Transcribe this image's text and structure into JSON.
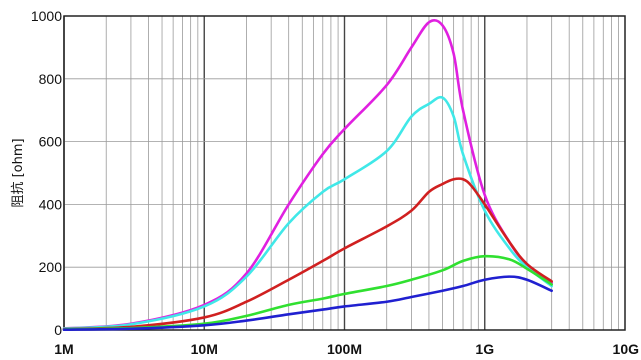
{
  "chart_data": {
    "type": "line",
    "ylabel": "阻抗 [ohm]",
    "xscale": "log",
    "xlim": [
      1000000,
      10000000000
    ],
    "ylim": [
      0,
      1000
    ],
    "grid": true,
    "x_tick_labels": [
      "1M",
      "10M",
      "100M",
      "1G",
      "10G"
    ],
    "y_tick_labels": [
      "0",
      "200",
      "400",
      "600",
      "800",
      "1000"
    ],
    "series": [
      {
        "color": "#e020e0",
        "x": [
          1000000,
          3000000,
          10000000,
          20000000,
          40000000,
          70000000,
          100000000,
          200000000,
          300000000,
          400000000,
          500000000,
          600000000,
          700000000,
          1000000000,
          1500000000,
          2000000000,
          3000000000
        ],
        "y": [
          5,
          20,
          80,
          180,
          400,
          560,
          640,
          780,
          900,
          980,
          970,
          880,
          700,
          430,
          280,
          210,
          150
        ]
      },
      {
        "color": "#40e8e8",
        "x": [
          1000000,
          3000000,
          10000000,
          20000000,
          40000000,
          70000000,
          100000000,
          200000000,
          300000000,
          400000000,
          500000000,
          600000000,
          700000000,
          1000000000,
          1500000000,
          2000000000,
          3000000000
        ],
        "y": [
          5,
          18,
          75,
          170,
          340,
          440,
          480,
          570,
          680,
          720,
          740,
          680,
          560,
          380,
          260,
          200,
          140
        ]
      },
      {
        "color": "#d02020",
        "x": [
          1000000,
          3000000,
          10000000,
          20000000,
          40000000,
          70000000,
          100000000,
          200000000,
          300000000,
          400000000,
          500000000,
          600000000,
          700000000,
          800000000,
          1000000000,
          1500000000,
          2000000000,
          3000000000
        ],
        "y": [
          3,
          10,
          40,
          90,
          160,
          220,
          260,
          330,
          380,
          440,
          465,
          480,
          480,
          460,
          400,
          280,
          210,
          155
        ]
      },
      {
        "color": "#30e030",
        "x": [
          1000000,
          3000000,
          10000000,
          20000000,
          40000000,
          70000000,
          100000000,
          200000000,
          300000000,
          500000000,
          700000000,
          1000000000,
          1500000000,
          2000000000,
          3000000000
        ],
        "y": [
          2,
          6,
          20,
          45,
          80,
          100,
          115,
          140,
          160,
          190,
          220,
          235,
          225,
          195,
          145
        ]
      },
      {
        "color": "#2020d0",
        "x": [
          1000000,
          3000000,
          10000000,
          20000000,
          40000000,
          70000000,
          100000000,
          200000000,
          300000000,
          500000000,
          700000000,
          1000000000,
          1500000000,
          2000000000,
          3000000000
        ],
        "y": [
          1,
          4,
          15,
          30,
          50,
          65,
          75,
          90,
          105,
          125,
          140,
          160,
          170,
          160,
          125
        ]
      }
    ]
  }
}
